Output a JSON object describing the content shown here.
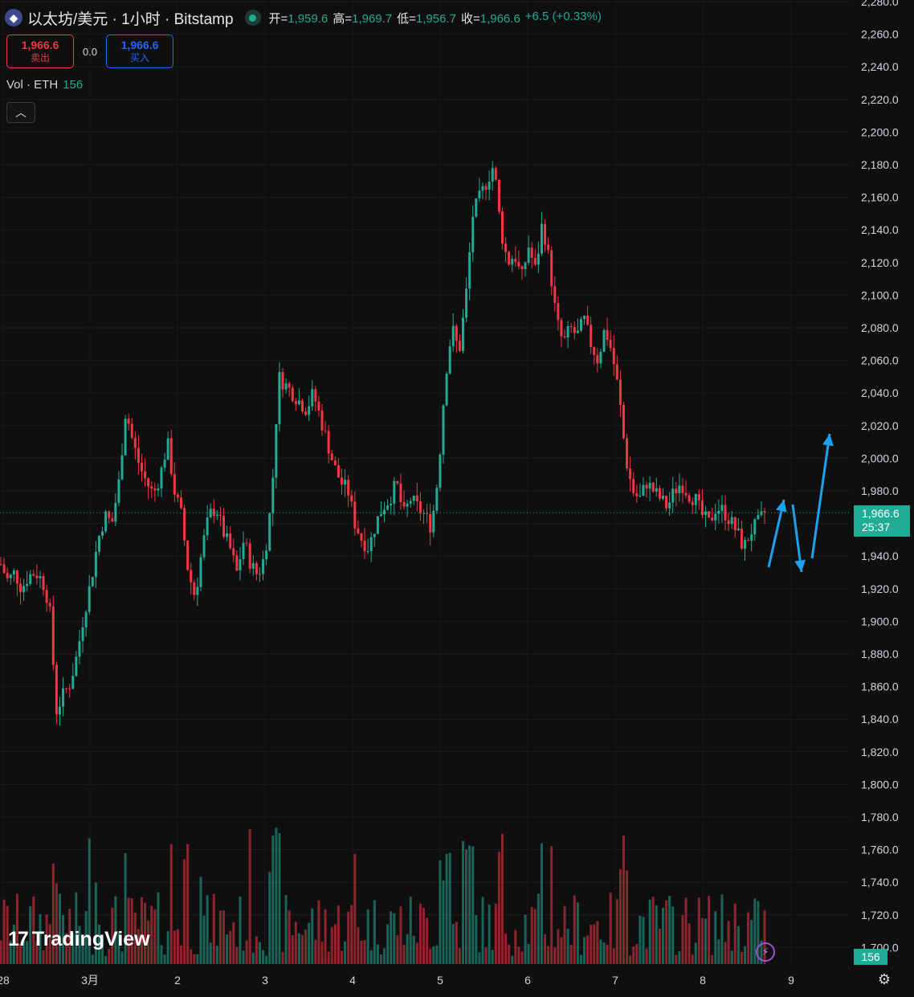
{
  "header": {
    "title": "以太坊/美元 · 1小时 · Bitstamp",
    "ohlc": [
      {
        "label": "开=",
        "value": "1,959.6"
      },
      {
        "label": "高=",
        "value": "1,969.7"
      },
      {
        "label": "低=",
        "value": "1,956.7"
      },
      {
        "label": "收=",
        "value": "1,966.6"
      }
    ],
    "change": "+6.5 (+0.33%)"
  },
  "trade": {
    "sell_price": "1,966.6",
    "sell_label": "卖出",
    "spread": "0.0",
    "buy_price": "1,966.6",
    "buy_label": "买入"
  },
  "volume_legend": {
    "label": "Vol · ETH",
    "value": "156"
  },
  "last_price": {
    "price": "1,966.6",
    "countdown": "25:37"
  },
  "volume_tag": "156",
  "logo_text": "TradingView",
  "colors": {
    "up": "#22ab94",
    "down": "#f23645",
    "arrow": "#1ea0f0",
    "bg": "#0f0f0f"
  },
  "chart_data": {
    "type": "candlestick",
    "symbol": "以太坊/美元",
    "interval": "1小时",
    "exchange": "Bitstamp",
    "y_axis": {
      "ticks": [
        "1,700.0",
        "1,720.0",
        "1,740.0",
        "1,760.0",
        "1,780.0",
        "1,800.0",
        "1,820.0",
        "1,840.0",
        "1,860.0",
        "1,880.0",
        "1,900.0",
        "1,920.0",
        "1,940.0",
        "1,960.0",
        "1,980.0",
        "2,000.0",
        "2,020.0",
        "2,040.0",
        "2,060.0",
        "2,080.0",
        "2,100.0",
        "2,120.0",
        "2,140.0",
        "2,160.0",
        "2,180.0",
        "2,200.0",
        "2,220.0",
        "2,240.0",
        "2,260.0",
        "2,280.0"
      ],
      "range": [
        1690,
        2282
      ]
    },
    "x_axis": {
      "labels": [
        "28",
        "3月",
        "2",
        "3",
        "4",
        "5",
        "6",
        "7",
        "8",
        "9"
      ]
    },
    "close_path": [
      1935,
      1925,
      1930,
      1920,
      1928,
      1930,
      1925,
      1910,
      1845,
      1855,
      1862,
      1880,
      1905,
      1925,
      1950,
      1965,
      1960,
      1985,
      2030,
      2010,
      1995,
      1985,
      1978,
      1990,
      2010,
      1980,
      1965,
      1930,
      1915,
      1945,
      1965,
      1970,
      1955,
      1945,
      1930,
      1950,
      1935,
      1928,
      1940,
      1975,
      2050,
      2045,
      2040,
      2035,
      2030,
      2040,
      2025,
      2010,
      1995,
      1985,
      1980,
      1960,
      1950,
      1945,
      1960,
      1970,
      1975,
      1985,
      1965,
      1975,
      1970,
      1965,
      1958,
      1990,
      2050,
      2080,
      2065,
      2100,
      2150,
      2160,
      2170,
      2180,
      2140,
      2120,
      2125,
      2110,
      2130,
      2115,
      2145,
      2120,
      2085,
      2070,
      2080,
      2075,
      2085,
      2070,
      2060,
      2080,
      2065,
      2040,
      2000,
      1980,
      1975,
      1985,
      1980,
      1975,
      1970,
      1980,
      1985,
      1978,
      1975,
      1965,
      1960,
      1970,
      1968,
      1962,
      1955,
      1945,
      1955,
      1960,
      1966.6
    ],
    "last_price": 1966.6,
    "grid": true,
    "annotations": [
      "up-arrow",
      "down-arrow",
      "up-arrow"
    ]
  }
}
